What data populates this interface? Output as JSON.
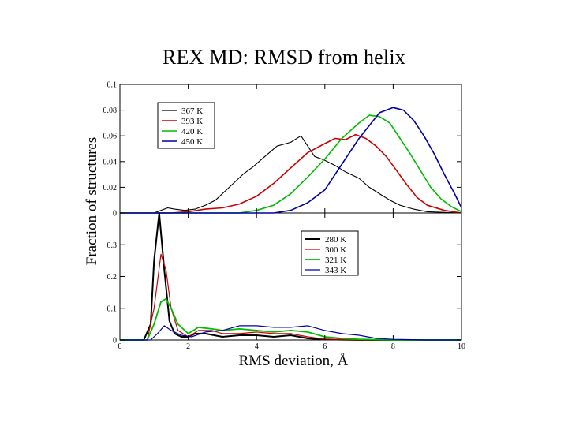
{
  "page_title": "REX MD: RMSD from helix",
  "chart_data": {
    "type": "line",
    "title": "REX MD: RMSD from helix",
    "xlabel": "RMS deviation, Å",
    "ylabel": "Fraction of structures",
    "xlim": [
      0,
      10
    ],
    "x_ticks": [
      0,
      2,
      4,
      6,
      8,
      10
    ],
    "x_tick_labels": [
      "0",
      "2",
      "4",
      "6",
      "8",
      "10"
    ],
    "grid": false,
    "panels": [
      {
        "name": "top",
        "ylim": [
          0,
          0.1
        ],
        "y_ticks": [
          0,
          0.02,
          0.04,
          0.06,
          0.08,
          0.1
        ],
        "y_tick_labels": [
          "0",
          "0.02",
          "0.04",
          "0.06",
          "0.08",
          "0.1"
        ],
        "legend_position": "top-left",
        "series": [
          {
            "name": "367 K",
            "color": "#000000",
            "width": 1.1,
            "points": [
              [
                0,
                0
              ],
              [
                1,
                0
              ],
              [
                1.2,
                0.002
              ],
              [
                1.4,
                0.004
              ],
              [
                1.6,
                0.003
              ],
              [
                1.9,
                0.002
              ],
              [
                2.2,
                0.003
              ],
              [
                2.5,
                0.006
              ],
              [
                2.8,
                0.01
              ],
              [
                3.2,
                0.02
              ],
              [
                3.6,
                0.03
              ],
              [
                3.9,
                0.036
              ],
              [
                4.2,
                0.043
              ],
              [
                4.6,
                0.052
              ],
              [
                5.0,
                0.055
              ],
              [
                5.3,
                0.06
              ],
              [
                5.5,
                0.052
              ],
              [
                5.7,
                0.044
              ],
              [
                6.0,
                0.041
              ],
              [
                6.3,
                0.037
              ],
              [
                6.6,
                0.032
              ],
              [
                7.0,
                0.027
              ],
              [
                7.3,
                0.02
              ],
              [
                7.6,
                0.015
              ],
              [
                7.9,
                0.01
              ],
              [
                8.2,
                0.006
              ],
              [
                8.6,
                0.003
              ],
              [
                9.0,
                0.001
              ],
              [
                10,
                0
              ]
            ]
          },
          {
            "name": "393 K",
            "color": "#cc0000",
            "width": 1.6,
            "points": [
              [
                0,
                0
              ],
              [
                1.5,
                0
              ],
              [
                2.0,
                0.001
              ],
              [
                2.5,
                0.003
              ],
              [
                3.0,
                0.004
              ],
              [
                3.5,
                0.007
              ],
              [
                4.0,
                0.013
              ],
              [
                4.5,
                0.023
              ],
              [
                5.0,
                0.035
              ],
              [
                5.5,
                0.047
              ],
              [
                6.0,
                0.054
              ],
              [
                6.3,
                0.058
              ],
              [
                6.6,
                0.057
              ],
              [
                6.9,
                0.061
              ],
              [
                7.2,
                0.058
              ],
              [
                7.5,
                0.052
              ],
              [
                7.8,
                0.044
              ],
              [
                8.1,
                0.033
              ],
              [
                8.4,
                0.022
              ],
              [
                8.7,
                0.012
              ],
              [
                9.0,
                0.006
              ],
              [
                9.5,
                0.002
              ],
              [
                10,
                0
              ]
            ]
          },
          {
            "name": "420 K",
            "color": "#00bb00",
            "width": 1.6,
            "points": [
              [
                0,
                0
              ],
              [
                3.5,
                0
              ],
              [
                4.0,
                0.002
              ],
              [
                4.5,
                0.006
              ],
              [
                5.0,
                0.015
              ],
              [
                5.5,
                0.028
              ],
              [
                6.0,
                0.042
              ],
              [
                6.5,
                0.058
              ],
              [
                7.0,
                0.07
              ],
              [
                7.3,
                0.076
              ],
              [
                7.6,
                0.075
              ],
              [
                7.9,
                0.07
              ],
              [
                8.2,
                0.058
              ],
              [
                8.5,
                0.046
              ],
              [
                8.8,
                0.033
              ],
              [
                9.1,
                0.02
              ],
              [
                9.4,
                0.011
              ],
              [
                9.7,
                0.005
              ],
              [
                10,
                0.001
              ]
            ]
          },
          {
            "name": "450 K",
            "color": "#0000aa",
            "width": 1.6,
            "points": [
              [
                0,
                0
              ],
              [
                4.5,
                0
              ],
              [
                5.0,
                0.002
              ],
              [
                5.5,
                0.008
              ],
              [
                6.0,
                0.018
              ],
              [
                6.5,
                0.038
              ],
              [
                7.0,
                0.058
              ],
              [
                7.3,
                0.068
              ],
              [
                7.6,
                0.078
              ],
              [
                8.0,
                0.082
              ],
              [
                8.3,
                0.08
              ],
              [
                8.6,
                0.072
              ],
              [
                8.9,
                0.06
              ],
              [
                9.2,
                0.046
              ],
              [
                9.5,
                0.03
              ],
              [
                9.8,
                0.015
              ],
              [
                10,
                0.004
              ]
            ]
          }
        ]
      },
      {
        "name": "bottom",
        "ylim": [
          0,
          0.4
        ],
        "y_ticks": [
          0,
          0.1,
          0.2,
          0.3,
          0.4
        ],
        "y_tick_labels": [
          "0",
          "0.1",
          "0.2",
          "0.3",
          ""
        ],
        "legend_position": "top-right",
        "series": [
          {
            "name": "280 K",
            "color": "#000000",
            "width": 2.0,
            "points": [
              [
                0,
                0
              ],
              [
                0.7,
                0
              ],
              [
                0.9,
                0.05
              ],
              [
                1.0,
                0.25
              ],
              [
                1.15,
                0.4
              ],
              [
                1.3,
                0.22
              ],
              [
                1.45,
                0.06
              ],
              [
                1.6,
                0.02
              ],
              [
                1.8,
                0.01
              ],
              [
                2.0,
                0.01
              ],
              [
                2.2,
                0.02
              ],
              [
                2.5,
                0.02
              ],
              [
                3.0,
                0.01
              ],
              [
                3.5,
                0.015
              ],
              [
                4.0,
                0.015
              ],
              [
                4.5,
                0.01
              ],
              [
                5.0,
                0.015
              ],
              [
                5.5,
                0.005
              ],
              [
                6.0,
                0.002
              ],
              [
                7.0,
                0
              ],
              [
                10,
                0
              ]
            ]
          },
          {
            "name": "300 K",
            "color": "#cc0000",
            "width": 1.2,
            "points": [
              [
                0,
                0
              ],
              [
                0.8,
                0
              ],
              [
                1.0,
                0.1
              ],
              [
                1.2,
                0.27
              ],
              [
                1.35,
                0.22
              ],
              [
                1.5,
                0.1
              ],
              [
                1.7,
                0.03
              ],
              [
                2.0,
                0.01
              ],
              [
                2.3,
                0.03
              ],
              [
                2.7,
                0.03
              ],
              [
                3.0,
                0.02
              ],
              [
                3.5,
                0.02
              ],
              [
                4.0,
                0.025
              ],
              [
                4.5,
                0.02
              ],
              [
                5.0,
                0.02
              ],
              [
                5.5,
                0.01
              ],
              [
                6.0,
                0.003
              ],
              [
                7.0,
                0
              ],
              [
                10,
                0
              ]
            ]
          },
          {
            "name": "321 K",
            "color": "#00bb00",
            "width": 1.8,
            "points": [
              [
                0,
                0
              ],
              [
                0.8,
                0
              ],
              [
                1.0,
                0.05
              ],
              [
                1.2,
                0.12
              ],
              [
                1.35,
                0.13
              ],
              [
                1.5,
                0.1
              ],
              [
                1.7,
                0.05
              ],
              [
                2.0,
                0.02
              ],
              [
                2.3,
                0.04
              ],
              [
                2.7,
                0.035
              ],
              [
                3.0,
                0.03
              ],
              [
                3.5,
                0.035
              ],
              [
                4.0,
                0.03
              ],
              [
                4.5,
                0.025
              ],
              [
                5.0,
                0.03
              ],
              [
                5.5,
                0.025
              ],
              [
                6.0,
                0.01
              ],
              [
                6.5,
                0.005
              ],
              [
                7.0,
                0.002
              ],
              [
                8.0,
                0
              ],
              [
                10,
                0
              ]
            ]
          },
          {
            "name": "343 K",
            "color": "#0000aa",
            "width": 1.2,
            "points": [
              [
                0,
                0
              ],
              [
                0.9,
                0
              ],
              [
                1.1,
                0.02
              ],
              [
                1.3,
                0.045
              ],
              [
                1.5,
                0.03
              ],
              [
                1.8,
                0.015
              ],
              [
                2.1,
                0.01
              ],
              [
                2.5,
                0.025
              ],
              [
                3.0,
                0.03
              ],
              [
                3.5,
                0.045
              ],
              [
                4.0,
                0.045
              ],
              [
                4.5,
                0.04
              ],
              [
                5.0,
                0.04
              ],
              [
                5.5,
                0.045
              ],
              [
                6.0,
                0.03
              ],
              [
                6.5,
                0.02
              ],
              [
                7.0,
                0.015
              ],
              [
                7.5,
                0.005
              ],
              [
                8.0,
                0.002
              ],
              [
                9.0,
                0
              ],
              [
                10,
                0
              ]
            ]
          }
        ]
      }
    ]
  }
}
